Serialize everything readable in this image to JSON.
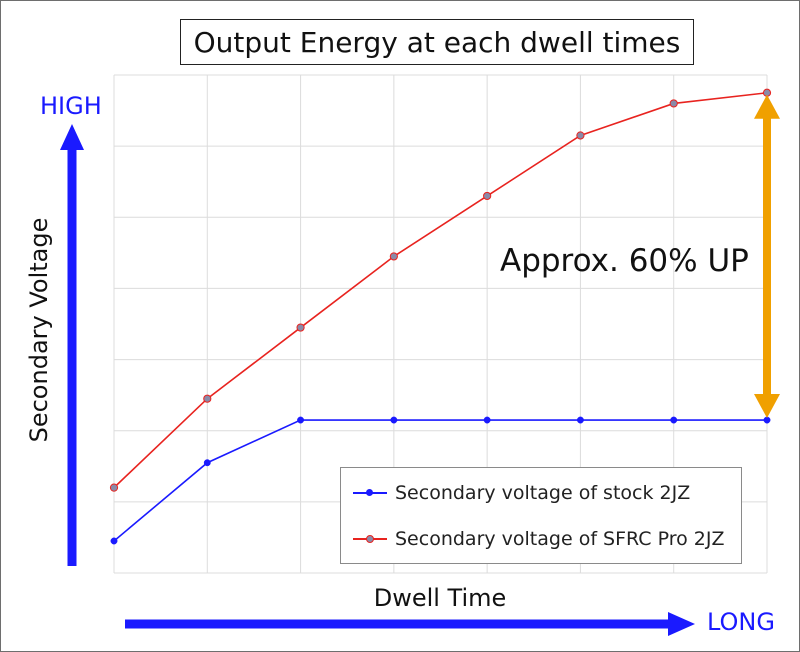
{
  "chart_data": {
    "type": "line",
    "title": "Output Energy at each dwell times",
    "xlabel": "Dwell Time",
    "ylabel": "Secondary Voltage",
    "x_axis_end_label": "LONG",
    "y_axis_end_label": "HIGH",
    "x": [
      1,
      2,
      3,
      4,
      5,
      6,
      7,
      8
    ],
    "xlim": [
      1,
      8
    ],
    "ylim": [
      0,
      7
    ],
    "grid": true,
    "legend_position": "bottom-right",
    "series": [
      {
        "name": "Secondary voltage of stock 2JZ",
        "color": "#1a1aff",
        "values": [
          0.45,
          1.55,
          2.15,
          2.15,
          2.15,
          2.15,
          2.15,
          2.15
        ]
      },
      {
        "name": "Secondary voltage of SFRC Pro 2JZ",
        "color": "#e8231f",
        "values": [
          1.2,
          2.45,
          3.45,
          4.45,
          5.3,
          6.15,
          6.6,
          6.75
        ]
      }
    ],
    "annotation": {
      "text": "Approx. 60% UP",
      "arrow_color": "#f0a000",
      "from_value": 2.15,
      "to_value": 6.75,
      "at_x": 8
    }
  }
}
